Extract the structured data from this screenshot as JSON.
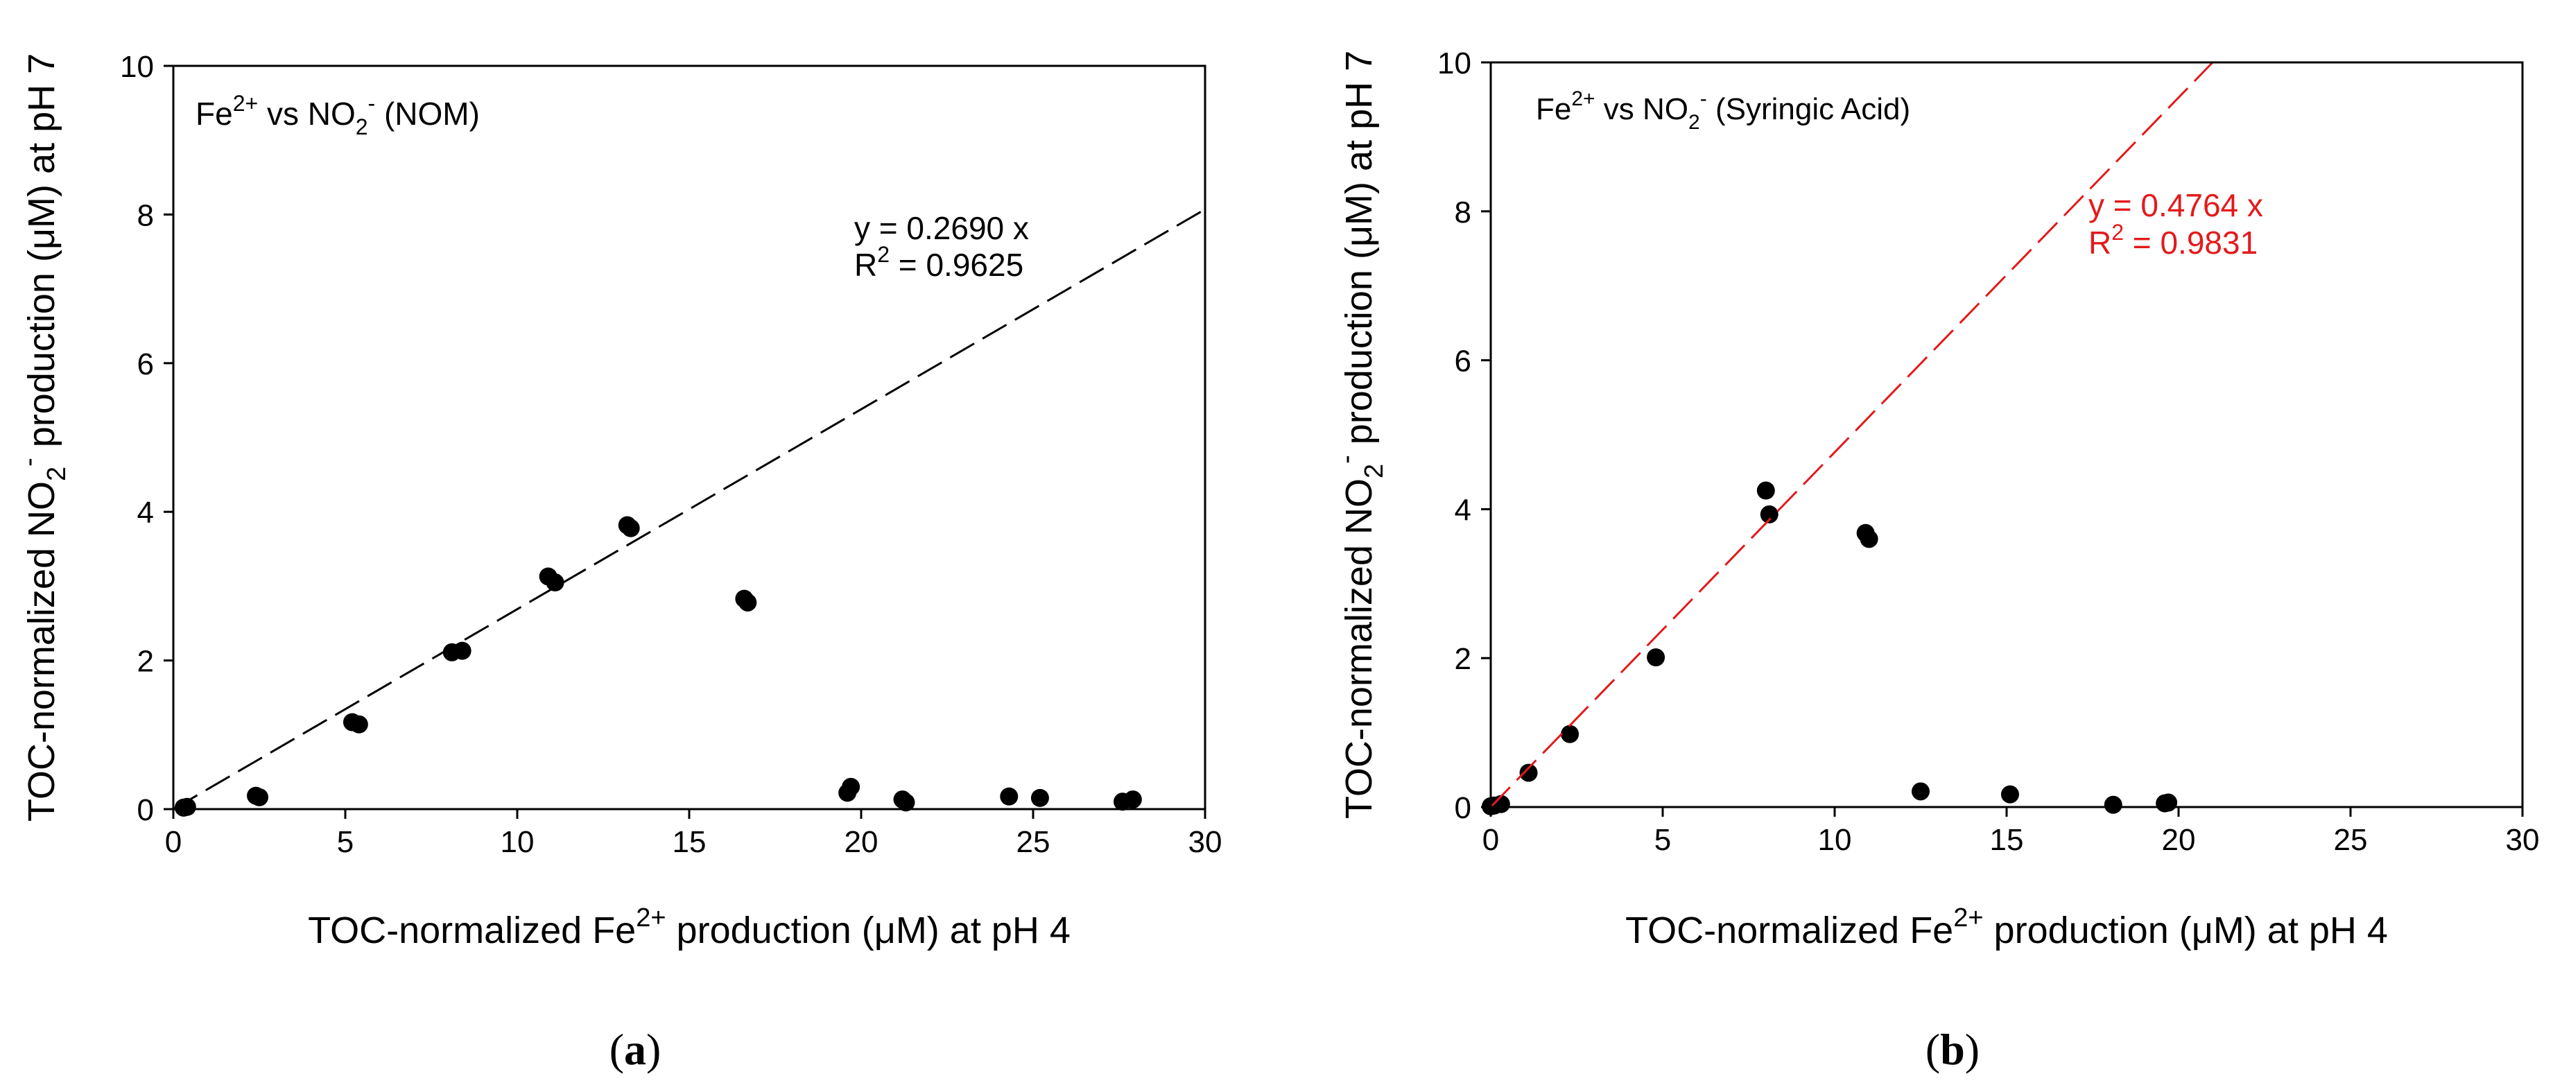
{
  "chart_data": [
    {
      "panel": "a",
      "caption": {
        "open": "(",
        "letter": "a",
        "close": ")"
      },
      "type": "scatter",
      "annotation": {
        "species1": "Fe",
        "species1_sup": "2+",
        "vs": " vs NO",
        "species2_sub": "2",
        "species2_sup": "-",
        "rest": " (NOM)"
      },
      "xlabel": {
        "pre": "TOC-normalized Fe",
        "sup": "2+",
        "post": " production (μM) at pH 4"
      },
      "ylabel": {
        "pre": "TOC-normalized NO",
        "sub": "2",
        "sup": "-",
        "post": " production (μM) at pH 7"
      },
      "xlim": [
        0,
        30
      ],
      "ylim": [
        0,
        10
      ],
      "xticks": [
        "0",
        "5",
        "10",
        "15",
        "20",
        "25",
        "30"
      ],
      "yticks": [
        "0",
        "2",
        "4",
        "6",
        "8",
        "10"
      ],
      "fit": {
        "slope": 0.269,
        "equation": "y = 0.2690 x",
        "r2_label": "R",
        "r2_sup": "2",
        "r2_value": " = 0.9625",
        "color": "#000000"
      },
      "points": [
        [
          0.3,
          0.02
        ],
        [
          0.4,
          0.03
        ],
        [
          2.4,
          0.18
        ],
        [
          2.5,
          0.16
        ],
        [
          5.2,
          1.17
        ],
        [
          5.4,
          1.14
        ],
        [
          8.1,
          2.11
        ],
        [
          8.4,
          2.13
        ],
        [
          10.9,
          3.13
        ],
        [
          11.1,
          3.05
        ],
        [
          13.2,
          3.82
        ],
        [
          13.3,
          3.78
        ],
        [
          16.6,
          2.83
        ],
        [
          16.7,
          2.78
        ],
        [
          19.6,
          0.22
        ],
        [
          19.7,
          0.3
        ],
        [
          21.2,
          0.13
        ],
        [
          21.3,
          0.09
        ],
        [
          24.3,
          0.17
        ],
        [
          25.2,
          0.15
        ],
        [
          27.6,
          0.1
        ],
        [
          27.9,
          0.13
        ]
      ]
    },
    {
      "panel": "b",
      "caption": {
        "open": "(",
        "letter": "b",
        "close": ")"
      },
      "type": "scatter",
      "annotation": {
        "species1": "Fe",
        "species1_sup": "2+",
        "vs": " vs NO",
        "species2_sub": "2",
        "species2_sup": "-",
        "rest": " (Syringic Acid)"
      },
      "xlabel": {
        "pre": "TOC-normalized Fe",
        "sup": "2+",
        "post": " production (μM) at pH 4"
      },
      "ylabel": {
        "pre": "TOC-normalized NO",
        "sub": "2",
        "sup": "-",
        "post": " production (μM) at pH 7"
      },
      "xlim": [
        0,
        30
      ],
      "ylim": [
        0,
        10
      ],
      "xticks": [
        "0",
        "5",
        "10",
        "15",
        "20",
        "25",
        "30"
      ],
      "yticks": [
        "0",
        "2",
        "4",
        "6",
        "8",
        "10"
      ],
      "fit": {
        "slope": 0.4764,
        "equation": "y = 0.4764 x",
        "r2_label": "R",
        "r2_sup": "2",
        "r2_value": " = 0.9831",
        "color": "#e31a1c"
      },
      "points": [
        [
          0.0,
          0.01
        ],
        [
          0.1,
          0.02
        ],
        [
          0.3,
          0.04
        ],
        [
          1.1,
          0.46
        ],
        [
          2.3,
          0.98
        ],
        [
          4.8,
          2.01
        ],
        [
          8.0,
          4.25
        ],
        [
          8.1,
          3.93
        ],
        [
          10.9,
          3.68
        ],
        [
          11.0,
          3.6
        ],
        [
          12.5,
          0.21
        ],
        [
          15.1,
          0.17
        ],
        [
          18.1,
          0.03
        ],
        [
          19.6,
          0.05
        ],
        [
          19.7,
          0.06
        ]
      ]
    }
  ]
}
